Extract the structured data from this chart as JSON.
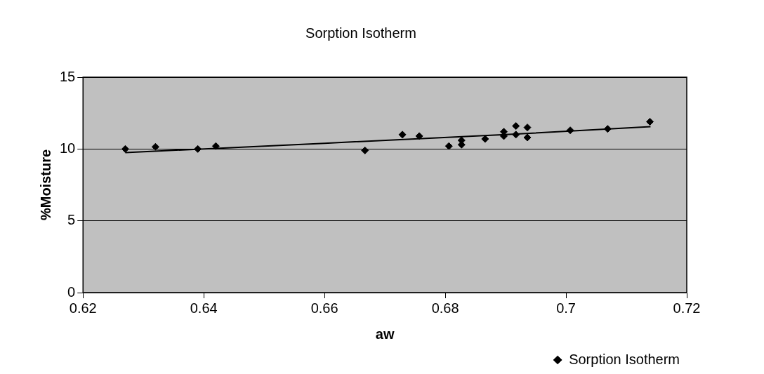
{
  "chart_data": {
    "type": "scatter",
    "title": "Sorption Isotherm",
    "xlabel": "aw",
    "ylabel": "%Moisture",
    "xlim": [
      0.62,
      0.72
    ],
    "xticks": [
      0.62,
      0.64,
      0.66,
      0.68,
      0.7,
      0.72
    ],
    "ylim": [
      0,
      15
    ],
    "yticks": [
      0,
      5,
      10,
      15
    ],
    "grid": "y",
    "legend": "bottom right",
    "marker": "diamond",
    "series": [
      {
        "name": "Sorption Isotherm",
        "color": "#000000",
        "x": [
          0.627,
          0.632,
          0.639,
          0.642,
          0.6667,
          0.6729,
          0.6757,
          0.6806,
          0.6827,
          0.6827,
          0.6866,
          0.6897,
          0.6897,
          0.6917,
          0.6917,
          0.6936,
          0.6936,
          0.7007,
          0.7069,
          0.7139
        ],
        "values": [
          10.0,
          10.15,
          10.0,
          10.2,
          9.9,
          11.0,
          10.9,
          10.2,
          10.6,
          10.3,
          10.7,
          11.2,
          10.9,
          11.6,
          11.0,
          11.5,
          10.8,
          11.3,
          11.4,
          11.9
        ]
      },
      {
        "type": "line",
        "color": "#000000",
        "marker": "none",
        "x": [
          0.627,
          0.66,
          0.69,
          0.714
        ],
        "values": [
          9.75,
          10.4,
          11.0,
          11.55
        ]
      }
    ]
  }
}
